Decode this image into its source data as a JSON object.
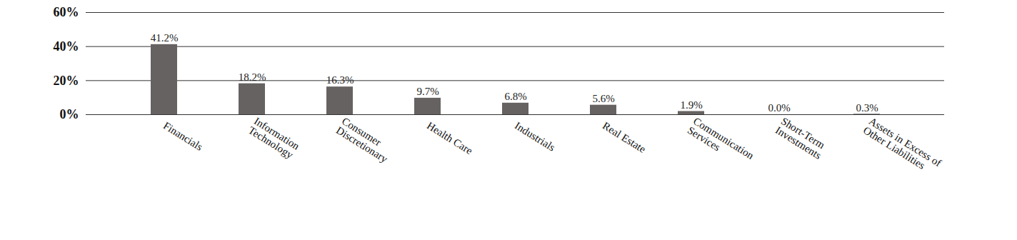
{
  "chart_data": {
    "type": "bar",
    "categories": [
      "Financials",
      "Information\nTechnology",
      "Consumer\nDiscretionary",
      "Health Care",
      "Industrials",
      "Real Estate",
      "Communication\nServices",
      "Short-Term\nInvestments",
      "Assets in Excess of\nOther Liabilities"
    ],
    "values": [
      41.2,
      18.2,
      16.3,
      9.7,
      6.8,
      5.6,
      1.9,
      0.0,
      0.3
    ],
    "value_labels": [
      "41.2%",
      "18.2%",
      "16.3%",
      "9.7%",
      "6.8%",
      "5.6%",
      "1.9%",
      "0.0%",
      "0.3%"
    ],
    "color": "#676262",
    "ylim": [
      0,
      60
    ],
    "yticks": [
      {
        "value": 0,
        "label": "0%"
      },
      {
        "value": 20,
        "label": "20%"
      },
      {
        "value": 40,
        "label": "40%"
      },
      {
        "value": 60,
        "label": "60%"
      }
    ],
    "grid": true,
    "data_labels": true
  }
}
